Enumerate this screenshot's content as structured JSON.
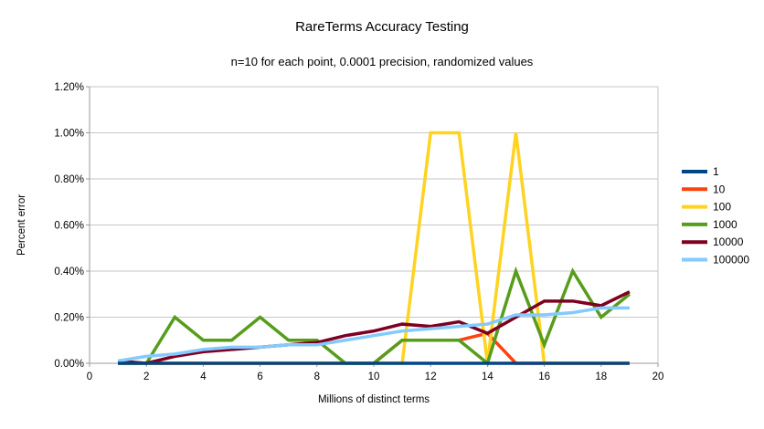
{
  "chart_data": {
    "type": "line",
    "title": "RareTerms Accuracy Testing",
    "subtitle": "n=10 for each point, 0.0001 precision, randomized values",
    "xlabel": "Millions of distinct terms",
    "ylabel": "Percent error",
    "xlim": [
      0,
      20
    ],
    "ylim_percent": [
      0,
      1.2
    ],
    "grid": true,
    "legend_position": "right",
    "x_ticks": [
      0,
      2,
      4,
      6,
      8,
      10,
      12,
      14,
      16,
      18,
      20
    ],
    "y_ticks_percent": [
      0,
      0.2,
      0.4,
      0.6,
      0.8,
      1.0,
      1.2
    ],
    "y_tick_labels": [
      "0.00%",
      "0.20%",
      "0.40%",
      "0.60%",
      "0.80%",
      "1.00%",
      "1.20%"
    ],
    "x": [
      1,
      2,
      3,
      4,
      5,
      6,
      7,
      8,
      9,
      10,
      11,
      12,
      13,
      14,
      15,
      16,
      17,
      18,
      19
    ],
    "series": [
      {
        "name": "1",
        "color": "#004586",
        "values": [
          0,
          0,
          0,
          0,
          0,
          0,
          0,
          0,
          0,
          0,
          0,
          0,
          0,
          0,
          0,
          0,
          0,
          0,
          0
        ]
      },
      {
        "name": "10",
        "color": "#FF420E",
        "values": [
          0,
          0,
          0,
          0,
          0,
          0,
          0,
          0,
          0,
          0,
          0.1,
          0.1,
          0.1,
          0.13,
          0,
          0,
          0,
          0,
          0
        ]
      },
      {
        "name": "100",
        "color": "#FFD320",
        "values": [
          0,
          0,
          0,
          0,
          0,
          0,
          0,
          0,
          0,
          0,
          0,
          1.0,
          1.0,
          0,
          1.0,
          0,
          0,
          0,
          0
        ]
      },
      {
        "name": "1000",
        "color": "#579D1C",
        "values": [
          0,
          0,
          0.2,
          0.1,
          0.1,
          0.2,
          0.1,
          0.1,
          0,
          0,
          0.1,
          0.1,
          0.1,
          0,
          0.4,
          0.08,
          0.4,
          0.2,
          0.3
        ]
      },
      {
        "name": "10000",
        "color": "#7E0021",
        "values": [
          0.01,
          0,
          0.03,
          0.05,
          0.06,
          0.07,
          0.08,
          0.09,
          0.12,
          0.14,
          0.17,
          0.16,
          0.18,
          0.13,
          0.2,
          0.27,
          0.27,
          0.25,
          0.31
        ]
      },
      {
        "name": "100000",
        "color": "#83CAFF",
        "values": [
          0.01,
          0.03,
          0.04,
          0.06,
          0.07,
          0.07,
          0.08,
          0.08,
          0.1,
          0.12,
          0.14,
          0.15,
          0.16,
          0.17,
          0.21,
          0.21,
          0.22,
          0.24,
          0.24
        ]
      }
    ],
    "draw_order": [
      1,
      2,
      3,
      4,
      5,
      0
    ],
    "grid_color": "#c6c6c6",
    "axis_color": "#999999",
    "line_width": 3.5
  }
}
